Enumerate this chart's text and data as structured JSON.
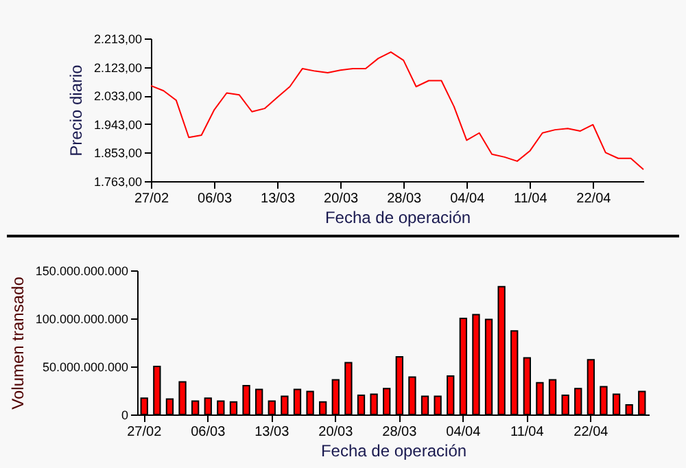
{
  "chart_data": [
    {
      "type": "line",
      "xlabel": "Fecha de operación",
      "ylabel": "Precio diario",
      "color": "#ff0000",
      "categories": [
        "27/02",
        null,
        null,
        null,
        null,
        "06/03",
        null,
        null,
        null,
        null,
        "13/03",
        null,
        null,
        null,
        null,
        "20/03",
        null,
        null,
        null,
        null,
        "28/03",
        null,
        null,
        null,
        null,
        "04/04",
        null,
        null,
        null,
        null,
        "11/04",
        null,
        null,
        null,
        null,
        "22/04",
        null,
        null,
        null,
        null
      ],
      "values": [
        2064,
        2048,
        2018,
        1901,
        1908,
        1987,
        2041,
        2035,
        1982,
        1992,
        2027,
        2061,
        2118,
        2110,
        2105,
        2113,
        2118,
        2118,
        2150,
        2170,
        2144,
        2061,
        2080,
        2080,
        1998,
        1892,
        1915,
        1848,
        1839,
        1826,
        1858,
        1915,
        1925,
        1929,
        1921,
        1941,
        1853,
        1835,
        1835,
        1800
      ],
      "ylim": [
        1763,
        2213
      ],
      "yticks": [
        {
          "value": 1763,
          "label": "1.763,00"
        },
        {
          "value": 1853,
          "label": "1.853,00"
        },
        {
          "value": 1943,
          "label": "1.943,00"
        },
        {
          "value": 2033,
          "label": "2.033,00"
        },
        {
          "value": 2123,
          "label": "2.123,00"
        },
        {
          "value": 2213,
          "label": "2.213,00"
        }
      ]
    },
    {
      "type": "bar",
      "xlabel": "Fecha de operación",
      "ylabel": "Volumen transado",
      "color": "#ff0000",
      "categories": [
        "27/02",
        null,
        null,
        null,
        null,
        "06/03",
        null,
        null,
        null,
        null,
        "13/03",
        null,
        null,
        null,
        null,
        "20/03",
        null,
        null,
        null,
        null,
        "28/03",
        null,
        null,
        null,
        null,
        "04/04",
        null,
        null,
        null,
        null,
        "11/04",
        null,
        null,
        null,
        null,
        "22/04",
        null,
        null,
        null,
        null
      ],
      "values": [
        17000000000,
        50000000000,
        16000000000,
        34000000000,
        14000000000,
        17000000000,
        14000000000,
        13000000000,
        30000000000,
        26000000000,
        14000000000,
        19000000000,
        26000000000,
        24000000000,
        13000000000,
        36000000000,
        54000000000,
        20000000000,
        21000000000,
        27000000000,
        60000000000,
        39000000000,
        19000000000,
        19000000000,
        40000000000,
        100000000000,
        104000000000,
        99000000000,
        133000000000,
        87000000000,
        59000000000,
        33000000000,
        36000000000,
        20000000000,
        27000000000,
        57000000000,
        29000000000,
        21000000000,
        10000000000,
        24000000000
      ],
      "ylim": [
        0,
        150000000000
      ],
      "yticks": [
        0,
        {
          "value": 50000000000,
          "label": "50.000.000.000"
        },
        {
          "value": 100000000000,
          "label": "100.000.000.000"
        },
        {
          "value": 150000000000,
          "label": "150.000.000.000"
        }
      ]
    }
  ]
}
